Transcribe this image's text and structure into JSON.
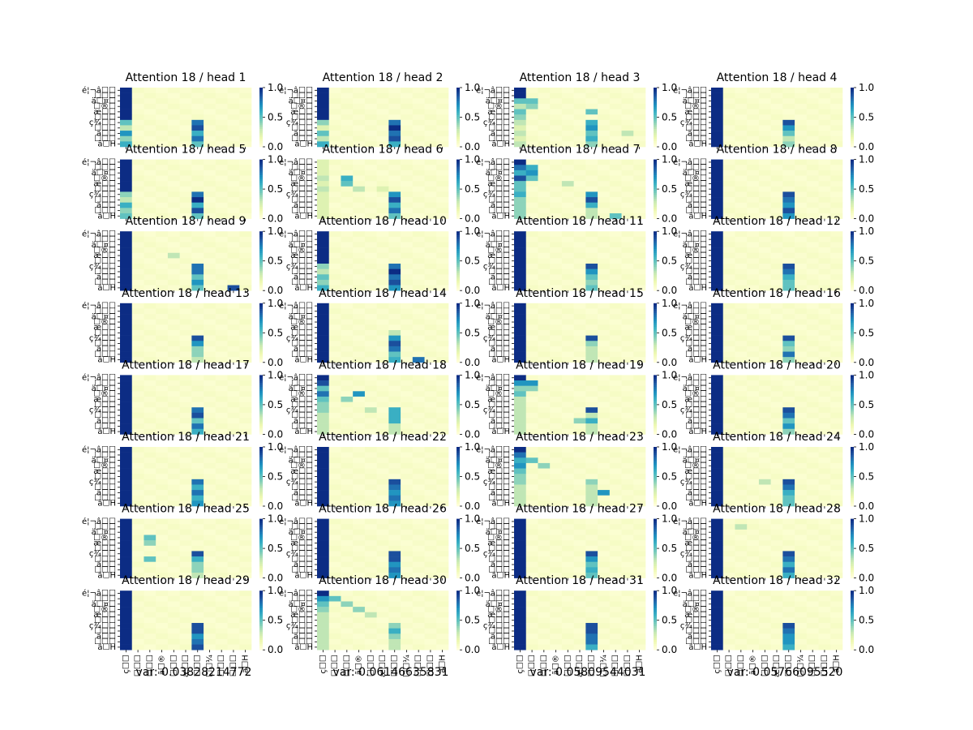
{
  "figure": {
    "title_template": "Attention 18 / head {n}",
    "colormap": [
      "#ffffd9",
      "#edf8b1",
      "#c7e9b4",
      "#7fcdbb",
      "#41b6c4",
      "#1d91c0",
      "#225ea8",
      "#0c2c84"
    ],
    "grid": {
      "rows": 8,
      "cols": 4
    },
    "colorbar_ticks": [
      "0.0",
      "0.5",
      "1.0"
    ],
    "y_tick_labels": [
      "é¦¬â☐☐",
      "☐☐☐",
      "ä☐¤☐",
      "☐®☐",
      "æ☐☐",
      "☐☐☐",
      "ç¾☐☐",
      "☐☐☐",
      "ä☐☐",
      "☐☐☐",
      "ã☐H"
    ],
    "x_tick_labels": [
      "ç☐☐",
      "☐☐☐",
      "☐☐☐",
      "ã☐®",
      "☐☐☐",
      "æ☐☐",
      "☐☐☐",
      "☐☐¼",
      "☐☐☐",
      "☐☐☐",
      "ã☐H"
    ]
  },
  "var_labels": [
    "var: 0.03828214772",
    "var: 0.06146635831",
    "var: 0.05809544031",
    "var: 0.05766095520"
  ],
  "chart_data": {
    "type": "heatmap",
    "value_range": [
      0.0,
      1.0
    ],
    "rows": 11,
    "cols": 11,
    "heads": [
      {
        "head": 1,
        "sinks": [
          10,
          10,
          10,
          10,
          10,
          10,
          5,
          3,
          7,
          4,
          6
        ],
        "key6": [
          0,
          0,
          0,
          0,
          0,
          0,
          8,
          9,
          6,
          8,
          5
        ],
        "extra": []
      },
      {
        "head": 2,
        "sinks": [
          10,
          10,
          10,
          10,
          10,
          10,
          4,
          2,
          5,
          3,
          6
        ],
        "key6": [
          0,
          0,
          0,
          0,
          0,
          0,
          8,
          10,
          8,
          9,
          6
        ],
        "extra": []
      },
      {
        "head": 3,
        "sinks": [
          10,
          10,
          5,
          3,
          5,
          4,
          3,
          2,
          3,
          2,
          3
        ],
        "key6": [
          0,
          0,
          0,
          0,
          0,
          0,
          6,
          7,
          5,
          6,
          4
        ],
        "extra": [
          [
            2,
            1,
            5
          ],
          [
            3,
            1,
            4
          ],
          [
            4,
            6,
            5
          ],
          [
            8,
            9,
            3
          ]
        ]
      },
      {
        "head": 4,
        "sinks": [
          10,
          10,
          10,
          10,
          10,
          10,
          10,
          10,
          10,
          10,
          10
        ],
        "key6": [
          0,
          0,
          0,
          0,
          0,
          0,
          9,
          7,
          5,
          3,
          4
        ],
        "extra": []
      },
      {
        "head": 5,
        "sinks": [
          10,
          10,
          10,
          10,
          10,
          10,
          4,
          3,
          6,
          4,
          5
        ],
        "key6": [
          0,
          0,
          0,
          0,
          0,
          0,
          8,
          10,
          6,
          9,
          5
        ],
        "extra": []
      },
      {
        "head": 6,
        "sinks": [
          2,
          2,
          2,
          3,
          2,
          3,
          2,
          2,
          2,
          2,
          2
        ],
        "key6": [
          0,
          0,
          0,
          0,
          0,
          0,
          7,
          9,
          6,
          8,
          5
        ],
        "extra": [
          [
            3,
            2,
            6
          ],
          [
            4,
            2,
            5
          ],
          [
            5,
            3,
            3
          ],
          [
            5,
            5,
            2
          ]
        ]
      },
      {
        "head": 7,
        "sinks": [
          10,
          8,
          6,
          9,
          5,
          5,
          6,
          4,
          4,
          4,
          4
        ],
        "key6": [
          0,
          0,
          0,
          0,
          0,
          0,
          7,
          9,
          6,
          3,
          3
        ],
        "extra": [
          [
            1,
            1,
            6
          ],
          [
            2,
            1,
            7
          ],
          [
            3,
            1,
            5
          ],
          [
            4,
            4,
            3
          ],
          [
            10,
            8,
            5
          ]
        ]
      },
      {
        "head": 8,
        "sinks": [
          10,
          10,
          10,
          10,
          10,
          10,
          10,
          10,
          10,
          10,
          10
        ],
        "key6": [
          0,
          0,
          0,
          0,
          0,
          0,
          9,
          8,
          7,
          9,
          7
        ],
        "extra": []
      },
      {
        "head": 9,
        "sinks": [
          10,
          10,
          10,
          10,
          10,
          10,
          10,
          10,
          10,
          10,
          10
        ],
        "key6": [
          0,
          0,
          0,
          0,
          0,
          0,
          8,
          8,
          5,
          7,
          5
        ],
        "extra": [
          [
            4,
            4,
            3
          ],
          [
            10,
            9,
            9
          ]
        ]
      },
      {
        "head": 10,
        "sinks": [
          10,
          10,
          10,
          10,
          10,
          10,
          4,
          3,
          5,
          4,
          6
        ],
        "key6": [
          0,
          0,
          0,
          0,
          0,
          0,
          8,
          10,
          8,
          9,
          7
        ],
        "extra": []
      },
      {
        "head": 11,
        "sinks": [
          10,
          10,
          10,
          10,
          10,
          10,
          10,
          10,
          10,
          10,
          10
        ],
        "key6": [
          0,
          0,
          0,
          0,
          0,
          0,
          9,
          7,
          5,
          4,
          5
        ],
        "extra": []
      },
      {
        "head": 12,
        "sinks": [
          10,
          10,
          10,
          10,
          10,
          10,
          10,
          10,
          10,
          10,
          10
        ],
        "key6": [
          0,
          0,
          0,
          0,
          0,
          0,
          9,
          8,
          6,
          5,
          5
        ],
        "extra": []
      },
      {
        "head": 13,
        "sinks": [
          10,
          10,
          10,
          10,
          10,
          10,
          10,
          10,
          10,
          10,
          10
        ],
        "key6": [
          0,
          0,
          0,
          0,
          0,
          0,
          9,
          7,
          4,
          4,
          3
        ],
        "extra": []
      },
      {
        "head": 14,
        "sinks": [
          10,
          10,
          10,
          10,
          10,
          10,
          10,
          10,
          10,
          10,
          10
        ],
        "key6": [
          0,
          0,
          0,
          0,
          0,
          0,
          7,
          9,
          8,
          5,
          6
        ],
        "extra": [
          [
            5,
            6,
            3
          ],
          [
            10,
            8,
            8
          ]
        ]
      },
      {
        "head": 15,
        "sinks": [
          10,
          10,
          10,
          10,
          10,
          10,
          10,
          10,
          10,
          10,
          10
        ],
        "key6": [
          0,
          0,
          0,
          0,
          0,
          0,
          9,
          4,
          3,
          3,
          3
        ],
        "extra": []
      },
      {
        "head": 16,
        "sinks": [
          10,
          10,
          10,
          10,
          10,
          10,
          10,
          10,
          10,
          10,
          10
        ],
        "key6": [
          0,
          0,
          0,
          0,
          0,
          0,
          9,
          5,
          4,
          8,
          4
        ],
        "extra": []
      },
      {
        "head": 17,
        "sinks": [
          10,
          10,
          10,
          10,
          10,
          10,
          10,
          10,
          10,
          10,
          10
        ],
        "key6": [
          0,
          0,
          0,
          0,
          0,
          0,
          8,
          9,
          5,
          8,
          6
        ],
        "extra": []
      },
      {
        "head": 18,
        "sinks": [
          10,
          9,
          5,
          8,
          5,
          4,
          4,
          3,
          3,
          3,
          3
        ],
        "key6": [
          0,
          0,
          0,
          0,
          0,
          0,
          6,
          6,
          6,
          3,
          3
        ],
        "extra": [
          [
            3,
            3,
            7
          ],
          [
            4,
            2,
            4
          ],
          [
            6,
            4,
            3
          ]
        ]
      },
      {
        "head": 19,
        "sinks": [
          10,
          7,
          4,
          5,
          3,
          3,
          3,
          3,
          3,
          3,
          3
        ],
        "key6": [
          0,
          0,
          0,
          0,
          0,
          0,
          9,
          3,
          6,
          3,
          3
        ],
        "extra": [
          [
            1,
            1,
            7
          ],
          [
            2,
            1,
            4
          ],
          [
            8,
            5,
            4
          ]
        ]
      },
      {
        "head": 20,
        "sinks": [
          10,
          10,
          10,
          10,
          10,
          10,
          10,
          10,
          10,
          10,
          10
        ],
        "key6": [
          0,
          0,
          0,
          0,
          0,
          0,
          9,
          8,
          5,
          7,
          4
        ],
        "extra": []
      },
      {
        "head": 21,
        "sinks": [
          10,
          10,
          10,
          10,
          10,
          10,
          10,
          10,
          10,
          10,
          10
        ],
        "key6": [
          0,
          0,
          0,
          0,
          0,
          0,
          8,
          6,
          8,
          6,
          7
        ],
        "extra": []
      },
      {
        "head": 22,
        "sinks": [
          10,
          10,
          10,
          10,
          10,
          10,
          10,
          10,
          10,
          10,
          10
        ],
        "key6": [
          0,
          0,
          0,
          0,
          0,
          0,
          9,
          8,
          7,
          8,
          7
        ],
        "extra": []
      },
      {
        "head": 23,
        "sinks": [
          10,
          8,
          6,
          7,
          5,
          4,
          4,
          3,
          3,
          3,
          3
        ],
        "key6": [
          0,
          0,
          0,
          0,
          0,
          0,
          4,
          3,
          3,
          3,
          3
        ],
        "extra": [
          [
            2,
            1,
            5
          ],
          [
            3,
            2,
            4
          ],
          [
            8,
            7,
            7
          ],
          [
            9,
            6,
            3
          ]
        ]
      },
      {
        "head": 24,
        "sinks": [
          10,
          10,
          10,
          10,
          10,
          10,
          10,
          10,
          10,
          10,
          10
        ],
        "key6": [
          0,
          0,
          0,
          0,
          0,
          0,
          9,
          8,
          6,
          5,
          5
        ],
        "extra": [
          [
            6,
            4,
            3
          ]
        ]
      },
      {
        "head": 25,
        "sinks": [
          10,
          10,
          10,
          10,
          10,
          10,
          10,
          10,
          10,
          10,
          10
        ],
        "key6": [
          0,
          0,
          0,
          0,
          0,
          0,
          9,
          6,
          4,
          4,
          3
        ],
        "extra": [
          [
            3,
            2,
            5
          ],
          [
            4,
            2,
            4
          ],
          [
            7,
            2,
            5
          ]
        ]
      },
      {
        "head": 26,
        "sinks": [
          10,
          10,
          10,
          10,
          10,
          10,
          10,
          10,
          10,
          10,
          10
        ],
        "key6": [
          0,
          0,
          0,
          0,
          0,
          0,
          9,
          9,
          7,
          8,
          7
        ],
        "extra": []
      },
      {
        "head": 27,
        "sinks": [
          10,
          10,
          10,
          10,
          10,
          10,
          10,
          10,
          10,
          10,
          10
        ],
        "key6": [
          0,
          0,
          0,
          0,
          0,
          0,
          9,
          7,
          5,
          6,
          5
        ],
        "extra": []
      },
      {
        "head": 28,
        "sinks": [
          10,
          10,
          10,
          10,
          10,
          10,
          10,
          10,
          10,
          10,
          10
        ],
        "key6": [
          0,
          0,
          0,
          0,
          0,
          0,
          9,
          8,
          6,
          8,
          6
        ],
        "extra": [
          [
            1,
            2,
            3
          ]
        ]
      },
      {
        "head": 29,
        "sinks": [
          10,
          10,
          10,
          10,
          10,
          10,
          10,
          10,
          10,
          10,
          10
        ],
        "key6": [
          0,
          0,
          0,
          0,
          0,
          0,
          9,
          9,
          7,
          8,
          9
        ],
        "extra": []
      },
      {
        "head": 30,
        "sinks": [
          10,
          7,
          5,
          4,
          3,
          3,
          3,
          3,
          3,
          3,
          3
        ],
        "key6": [
          0,
          0,
          0,
          0,
          0,
          0,
          4,
          6,
          4,
          3,
          3
        ],
        "extra": [
          [
            1,
            1,
            5
          ],
          [
            2,
            2,
            4
          ],
          [
            3,
            3,
            4
          ],
          [
            4,
            4,
            3
          ]
        ]
      },
      {
        "head": 31,
        "sinks": [
          10,
          10,
          10,
          10,
          10,
          10,
          10,
          10,
          10,
          10,
          10
        ],
        "key6": [
          0,
          0,
          0,
          0,
          0,
          0,
          9,
          9,
          8,
          8,
          6
        ],
        "extra": []
      },
      {
        "head": 32,
        "sinks": [
          10,
          10,
          10,
          10,
          10,
          10,
          10,
          10,
          10,
          10,
          10
        ],
        "key6": [
          0,
          0,
          0,
          0,
          0,
          0,
          9,
          8,
          7,
          7,
          6
        ],
        "extra": []
      }
    ]
  }
}
